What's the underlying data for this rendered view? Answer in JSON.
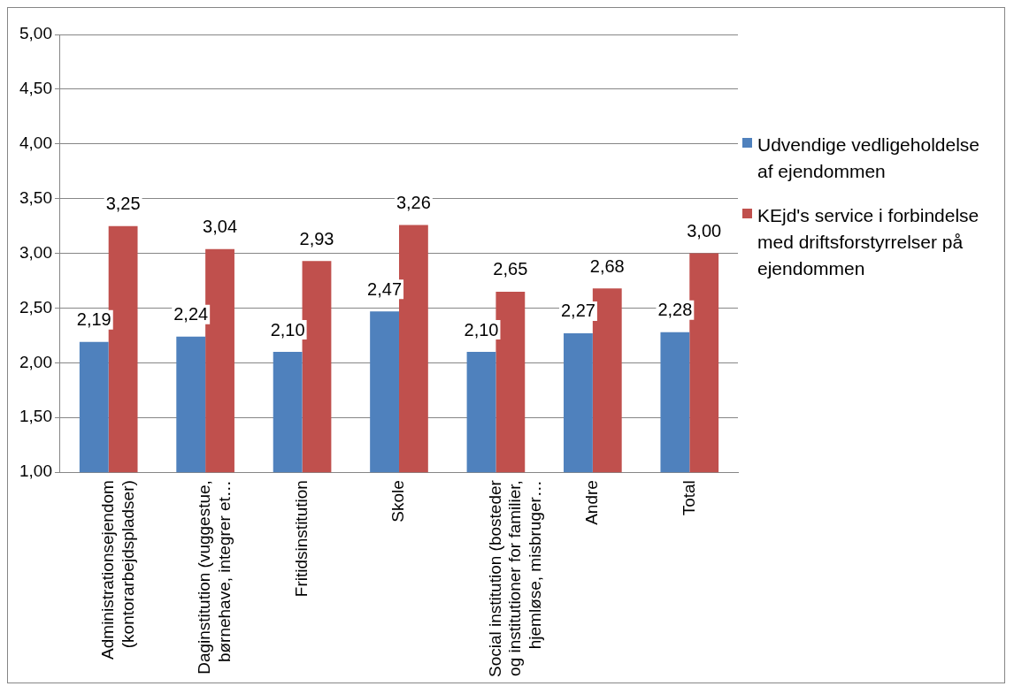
{
  "chart_data": {
    "type": "bar",
    "categories": [
      "Administrationsejendom (kontorarbejdspladser)",
      "Daginstitution (vuggestue, børnehave, integrer et…",
      "Fritidsinstitution",
      "Skole",
      "Social institution (bosteder og institutioner for familier, hjemløse, misbruger…",
      "Andre",
      "Total"
    ],
    "series": [
      {
        "name": "Udvendige vedligeholdelse af ejendommen",
        "color": "#4f81bd",
        "values": [
          2.19,
          2.24,
          2.1,
          2.47,
          2.1,
          2.27,
          2.28
        ],
        "value_labels": [
          "2,19",
          "2,24",
          "2,10",
          "2,47",
          "2,10",
          "2,27",
          "2,28"
        ]
      },
      {
        "name": "KEjd's service i forbindelse med driftsforstyrrelser på ejendommen",
        "color": "#c0504d",
        "values": [
          3.25,
          3.04,
          2.93,
          3.26,
          2.65,
          2.68,
          3.0
        ],
        "value_labels": [
          "3,25",
          "3,04",
          "2,93",
          "3,26",
          "2,65",
          "2,68",
          "3,00"
        ]
      }
    ],
    "ylim": [
      1,
      5
    ],
    "yticks": [
      {
        "value": 1,
        "label": "1,00"
      },
      {
        "value": 1.5,
        "label": "1,50"
      },
      {
        "value": 2,
        "label": "2,00"
      },
      {
        "value": 2.5,
        "label": "2,50"
      },
      {
        "value": 3,
        "label": "3,00"
      },
      {
        "value": 3.5,
        "label": "3,50"
      },
      {
        "value": 4,
        "label": "4,00"
      },
      {
        "value": 4.5,
        "label": "4,50"
      },
      {
        "value": 5,
        "label": "5,00"
      }
    ],
    "grid": "y",
    "legend": "right"
  }
}
